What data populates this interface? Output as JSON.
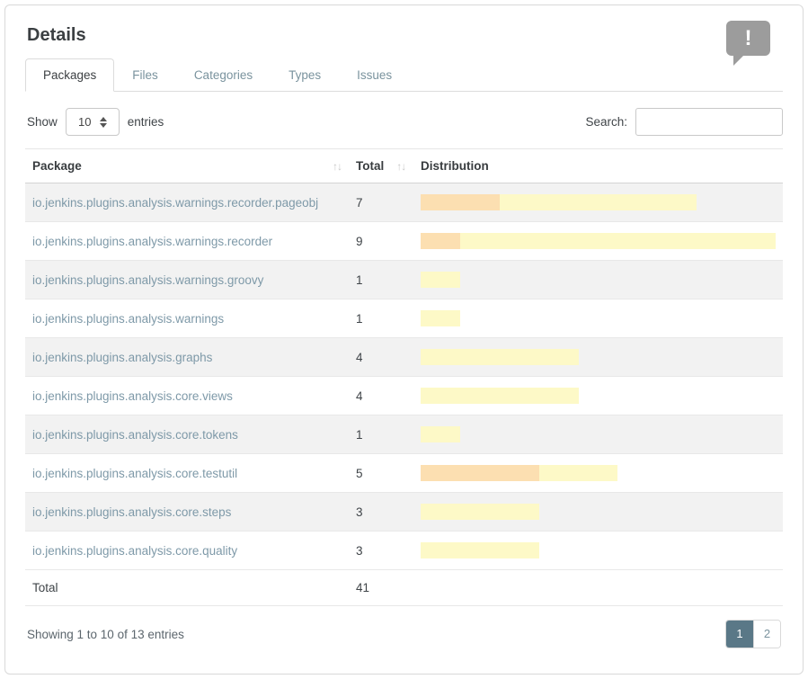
{
  "card": {
    "title": "Details"
  },
  "notification_icon": {
    "glyph": "!"
  },
  "tabs": [
    {
      "label": "Packages",
      "active": true
    },
    {
      "label": "Files",
      "active": false
    },
    {
      "label": "Categories",
      "active": false
    },
    {
      "label": "Types",
      "active": false
    },
    {
      "label": "Issues",
      "active": false
    }
  ],
  "controls": {
    "show_label": "Show",
    "page_length": "10",
    "entries_label": "entries",
    "search_label": "Search:",
    "search_value": ""
  },
  "table": {
    "columns": [
      {
        "label": "Package",
        "sortable": true
      },
      {
        "label": "Total",
        "sortable": true
      },
      {
        "label": "Distribution",
        "sortable": false
      }
    ],
    "sort_icon": "↑↓",
    "max_total": 9,
    "rows": [
      {
        "package": "io.jenkins.plugins.analysis.warnings.recorder.pageobj",
        "total": "7",
        "high": 2,
        "normal": 5
      },
      {
        "package": "io.jenkins.plugins.analysis.warnings.recorder",
        "total": "9",
        "high": 1,
        "normal": 8
      },
      {
        "package": "io.jenkins.plugins.analysis.warnings.groovy",
        "total": "1",
        "high": 0,
        "normal": 1
      },
      {
        "package": "io.jenkins.plugins.analysis.warnings",
        "total": "1",
        "high": 0,
        "normal": 1
      },
      {
        "package": "io.jenkins.plugins.analysis.graphs",
        "total": "4",
        "high": 0,
        "normal": 4
      },
      {
        "package": "io.jenkins.plugins.analysis.core.views",
        "total": "4",
        "high": 0,
        "normal": 4
      },
      {
        "package": "io.jenkins.plugins.analysis.core.tokens",
        "total": "1",
        "high": 0,
        "normal": 1
      },
      {
        "package": "io.jenkins.plugins.analysis.core.testutil",
        "total": "5",
        "high": 3,
        "normal": 2
      },
      {
        "package": "io.jenkins.plugins.analysis.core.steps",
        "total": "3",
        "high": 0,
        "normal": 3
      },
      {
        "package": "io.jenkins.plugins.analysis.core.quality",
        "total": "3",
        "high": 0,
        "normal": 3
      }
    ],
    "footer": {
      "label": "Total",
      "total": "41"
    }
  },
  "pagination": {
    "info": "Showing 1 to 10 of 13 entries",
    "pages": [
      {
        "label": "1",
        "active": true
      },
      {
        "label": "2",
        "active": false
      }
    ]
  },
  "colors": {
    "severity_high": "#fcdfb1",
    "severity_normal": "#fdf9c7",
    "active_page_bg": "#5a7887",
    "link_text": "#7e99a8"
  }
}
